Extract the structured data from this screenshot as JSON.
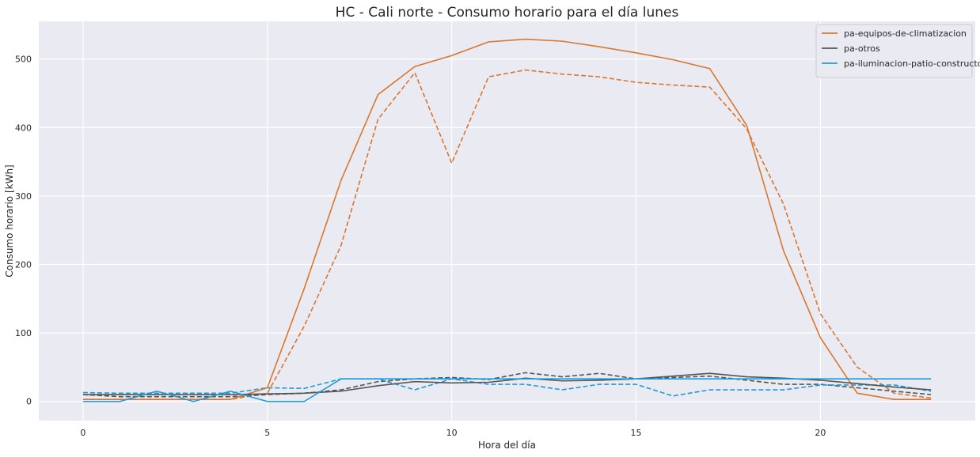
{
  "chart_data": {
    "type": "line",
    "title": "HC - Cali norte - Consumo horario para el día lunes",
    "xlabel": "Hora del día",
    "ylabel": "Consumo horario [kWh]",
    "xlim": [
      -1.2,
      24.2
    ],
    "ylim": [
      -28,
      555
    ],
    "xticks": [
      0,
      5,
      10,
      15,
      20
    ],
    "yticks": [
      0,
      100,
      200,
      300,
      400,
      500
    ],
    "grid": true,
    "legend_position": "top-right",
    "x": [
      0,
      1,
      2,
      3,
      4,
      5,
      6,
      7,
      8,
      9,
      10,
      11,
      12,
      13,
      14,
      15,
      16,
      17,
      18,
      19,
      20,
      21,
      22,
      23
    ],
    "series": [
      {
        "name": "pa-equipos-de-climatizacion",
        "color": "#d9772f",
        "style": "solid",
        "in_legend": true,
        "values": [
          3,
          3,
          3,
          3,
          3,
          20,
          165,
          323,
          448,
          489,
          505,
          525,
          529,
          526,
          518,
          509,
          499,
          486,
          403,
          220,
          93,
          12,
          3,
          3
        ]
      },
      {
        "name": "pa-otros",
        "color": "#555555",
        "style": "solid",
        "in_legend": true,
        "values": [
          10,
          10,
          10,
          10,
          10,
          11,
          12,
          15,
          23,
          29,
          27,
          28,
          34,
          30,
          31,
          33,
          37,
          41,
          36,
          34,
          31,
          26,
          21,
          17
        ]
      },
      {
        "name": "pa-iluminacion-patio-constructor",
        "color": "#1e9cd7",
        "style": "solid",
        "in_legend": true,
        "values": [
          0,
          0,
          15,
          0,
          15,
          0,
          0,
          33,
          33,
          33,
          33,
          33,
          33,
          33,
          33,
          33,
          33,
          33,
          33,
          33,
          33,
          33,
          33,
          33
        ]
      },
      {
        "color": "#d9772f",
        "style": "dashed",
        "in_legend": false,
        "values": [
          3,
          3,
          3,
          3,
          3,
          12,
          110,
          228,
          412,
          480,
          348,
          474,
          484,
          478,
          474,
          466,
          462,
          459,
          398,
          288,
          128,
          50,
          12,
          5
        ]
      },
      {
        "color": "#555555",
        "style": "dashed",
        "in_legend": false,
        "values": [
          10,
          7,
          7,
          7,
          7,
          10,
          12,
          17,
          29,
          33,
          35,
          32,
          42,
          36,
          41,
          33,
          35,
          37,
          31,
          25,
          25,
          20,
          15,
          10
        ]
      },
      {
        "color": "#1e9cd7",
        "style": "dashed",
        "in_legend": false,
        "values": [
          13,
          12,
          12,
          12,
          12,
          20,
          19,
          33,
          33,
          17,
          33,
          25,
          25,
          17,
          25,
          25,
          8,
          17,
          17,
          17,
          24,
          24,
          24,
          15
        ]
      }
    ]
  }
}
